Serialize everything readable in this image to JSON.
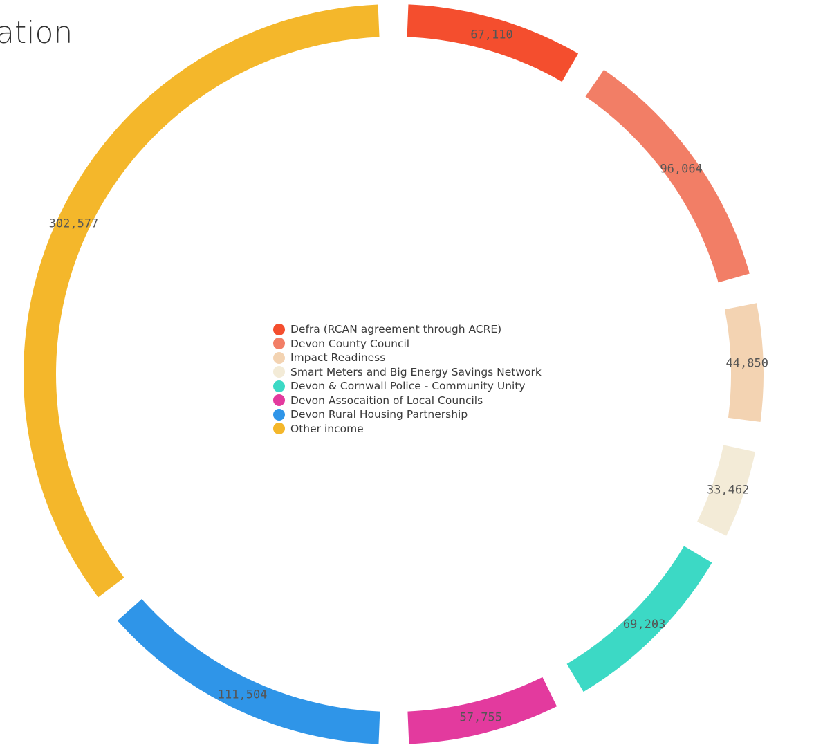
{
  "title": "ation",
  "chart_data": {
    "type": "pie",
    "variant": "donut",
    "legend_position": "center",
    "series": [
      {
        "name": "Defra (RCAN agreement through ACRE)",
        "value": 67110,
        "label": "67,110",
        "color": "#F44E2E"
      },
      {
        "name": "Devon County Council",
        "value": 96064,
        "label": "96,064",
        "color": "#F27E66"
      },
      {
        "name": "Impact Readiness",
        "value": 44850,
        "label": "44,850",
        "color": "#F3D3B2"
      },
      {
        "name": "Smart Meters and Big Energy Savings Network",
        "value": 33462,
        "label": "33,462",
        "color": "#F3EBD7"
      },
      {
        "name": "Devon & Cornwall Police - Community Unity",
        "value": 69203,
        "label": "69,203",
        "color": "#3CD9C5"
      },
      {
        "name": "Devon Assocaition of Local Councils",
        "value": 57755,
        "label": "57,755",
        "color": "#E33A9E"
      },
      {
        "name": "Devon Rural Housing Partnership",
        "value": 111504,
        "label": "111,504",
        "color": "#2F95E8"
      },
      {
        "name": "Other income",
        "value": 302577,
        "label": "302,577",
        "color": "#F4B72B"
      }
    ]
  }
}
